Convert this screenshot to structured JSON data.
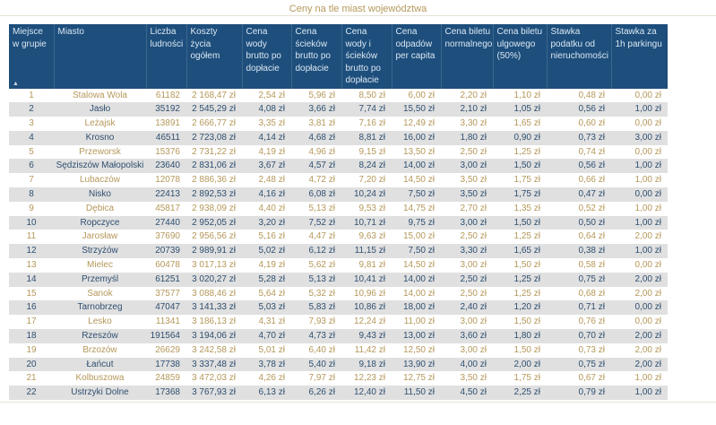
{
  "title": "Ceny na tle miast województwa",
  "sort_icon": "▲",
  "colors": {
    "header_bg": "#1d4e7c",
    "header_text": "#dce8f2",
    "accent_gold": "#b5985a",
    "row_alt_bg": "#e0e0e0",
    "row_alt_text": "#2f4f70",
    "widget_border": "#e6e2d8"
  },
  "table": {
    "columns": [
      {
        "key": "miejsce",
        "label": "Miejsce w grupie"
      },
      {
        "key": "miasto",
        "label": "Miasto"
      },
      {
        "key": "liczba-ludnosci",
        "label": "Liczba ludności"
      },
      {
        "key": "koszty-zycia",
        "label": "Koszty życia ogółem"
      },
      {
        "key": "cena-wody",
        "label": "Cena wody brutto po dopłacie"
      },
      {
        "key": "cena-sciekow",
        "label": "Cena ścieków brutto po dopłacie"
      },
      {
        "key": "cena-wody-i-sciekow",
        "label": "Cena wody i ścieków brutto po dopłacie"
      },
      {
        "key": "cena-odpadow",
        "label": "Cena odpadów per capita"
      },
      {
        "key": "bilet-normalny",
        "label": "Cena biletu normalnego"
      },
      {
        "key": "bilet-ulgowy",
        "label": "Cena biletu ulgowego (50%)"
      },
      {
        "key": "podatek-nieruchomosci",
        "label": "Stawka podatku od nieruchomości"
      },
      {
        "key": "parking",
        "label": "Stawka za 1h parkingu"
      }
    ],
    "rows": [
      [
        "1",
        "Stalowa Wola",
        "61182",
        "2 168,47 zł",
        "2,54 zł",
        "5,96 zł",
        "8,50 zł",
        "6,00 zł",
        "2,20 zł",
        "1,10 zł",
        "0,48 zł",
        "0,00 zł"
      ],
      [
        "2",
        "Jasło",
        "35192",
        "2 545,29 zł",
        "4,08 zł",
        "3,66 zł",
        "7,74 zł",
        "15,50 zł",
        "2,10 zł",
        "1,05 zł",
        "0,56 zł",
        "1,00 zł"
      ],
      [
        "3",
        "Leżajsk",
        "13891",
        "2 666,77 zł",
        "3,35 zł",
        "3,81 zł",
        "7,16 zł",
        "12,49 zł",
        "3,30 zł",
        "1,65 zł",
        "0,60 zł",
        "0,00 zł"
      ],
      [
        "4",
        "Krosno",
        "46511",
        "2 723,08 zł",
        "4,14 zł",
        "4,68 zł",
        "8,81 zł",
        "16,00 zł",
        "1,80 zł",
        "0,90 zł",
        "0,73 zł",
        "3,00 zł"
      ],
      [
        "5",
        "Przeworsk",
        "15376",
        "2 731,22 zł",
        "4,19 zł",
        "4,96 zł",
        "9,15 zł",
        "13,50 zł",
        "2,50 zł",
        "1,25 zł",
        "0,74 zł",
        "0,00 zł"
      ],
      [
        "6",
        "Sędziszów Małopolski",
        "23640",
        "2 831,06 zł",
        "3,67 zł",
        "4,57 zł",
        "8,24 zł",
        "14,00 zł",
        "3,00 zł",
        "1,50 zł",
        "0,56 zł",
        "1,00 zł"
      ],
      [
        "7",
        "Lubaczów",
        "12078",
        "2 886,36 zł",
        "2,48 zł",
        "4,72 zł",
        "7,20 zł",
        "14,50 zł",
        "3,50 zł",
        "1,75 zł",
        "0,66 zł",
        "1,00 zł"
      ],
      [
        "8",
        "Nisko",
        "22413",
        "2 892,53 zł",
        "4,16 zł",
        "6,08 zł",
        "10,24 zł",
        "7,50 zł",
        "3,50 zł",
        "1,75 zł",
        "0,47 zł",
        "0,00 zł"
      ],
      [
        "9",
        "Dębica",
        "45817",
        "2 938,09 zł",
        "4,40 zł",
        "5,13 zł",
        "9,53 zł",
        "14,75 zł",
        "2,70 zł",
        "1,35 zł",
        "0,52 zł",
        "1,00 zł"
      ],
      [
        "10",
        "Ropczyce",
        "27440",
        "2 952,05 zł",
        "3,20 zł",
        "7,52 zł",
        "10,71 zł",
        "9,75 zł",
        "3,00 zł",
        "1,50 zł",
        "0,50 zł",
        "1,00 zł"
      ],
      [
        "11",
        "Jarosław",
        "37690",
        "2 956,56 zł",
        "5,16 zł",
        "4,47 zł",
        "9,63 zł",
        "15,00 zł",
        "2,50 zł",
        "1,25 zł",
        "0,64 zł",
        "2,00 zł"
      ],
      [
        "12",
        "Strzyżów",
        "20739",
        "2 989,91 zł",
        "5,02 zł",
        "6,12 zł",
        "11,15 zł",
        "7,50 zł",
        "3,30 zł",
        "1,65 zł",
        "0,38 zł",
        "1,00 zł"
      ],
      [
        "13",
        "Mielec",
        "60478",
        "3 017,13 zł",
        "4,19 zł",
        "5,62 zł",
        "9,81 zł",
        "14,50 zł",
        "3,00 zł",
        "1,50 zł",
        "0,58 zł",
        "0,00 zł"
      ],
      [
        "14",
        "Przemyśl",
        "61251",
        "3 020,27 zł",
        "5,28 zł",
        "5,13 zł",
        "10,41 zł",
        "14,00 zł",
        "2,50 zł",
        "1,25 zł",
        "0,75 zł",
        "2,00 zł"
      ],
      [
        "15",
        "Sanok",
        "37577",
        "3 088,46 zł",
        "5,64 zł",
        "5,32 zł",
        "10,96 zł",
        "14,00 zł",
        "2,50 zł",
        "1,25 zł",
        "0,68 zł",
        "2,00 zł"
      ],
      [
        "16",
        "Tarnobrzeg",
        "47047",
        "3 141,33 zł",
        "5,03 zł",
        "5,83 zł",
        "10,86 zł",
        "18,00 zł",
        "2,40 zł",
        "1,20 zł",
        "0,71 zł",
        "0,00 zł"
      ],
      [
        "17",
        "Lesko",
        "11341",
        "3 186,13 zł",
        "4,31 zł",
        "7,93 zł",
        "12,24 zł",
        "11,00 zł",
        "3,00 zł",
        "1,50 zł",
        "0,76 zł",
        "0,00 zł"
      ],
      [
        "18",
        "Rzeszów",
        "191564",
        "3 194,06 zł",
        "4,70 zł",
        "4,73 zł",
        "9,43 zł",
        "13,00 zł",
        "3,60 zł",
        "1,80 zł",
        "0,70 zł",
        "2,00 zł"
      ],
      [
        "19",
        "Brzozów",
        "26629",
        "3 242,58 zł",
        "5,01 zł",
        "6,40 zł",
        "11,42 zł",
        "12,50 zł",
        "3,00 zł",
        "1,50 zł",
        "0,73 zł",
        "2,00 zł"
      ],
      [
        "20",
        "Łańcut",
        "17738",
        "3 337,48 zł",
        "3,78 zł",
        "5,40 zł",
        "9,18 zł",
        "13,90 zł",
        "4,00 zł",
        "2,00 zł",
        "0,75 zł",
        "2,00 zł"
      ],
      [
        "21",
        "Kolbuszowa",
        "24859",
        "3 472,03 zł",
        "4,26 zł",
        "7,97 zł",
        "12,23 zł",
        "12,75 zł",
        "3,50 zł",
        "1,75 zł",
        "0,67 zł",
        "1,00 zł"
      ],
      [
        "22",
        "Ustrzyki Dolne",
        "17368",
        "3 767,93 zł",
        "6,13 zł",
        "6,26 zł",
        "12,40 zł",
        "11,50 zł",
        "4,50 zł",
        "2,25 zł",
        "0,79 zł",
        "1,00 zł"
      ]
    ]
  }
}
